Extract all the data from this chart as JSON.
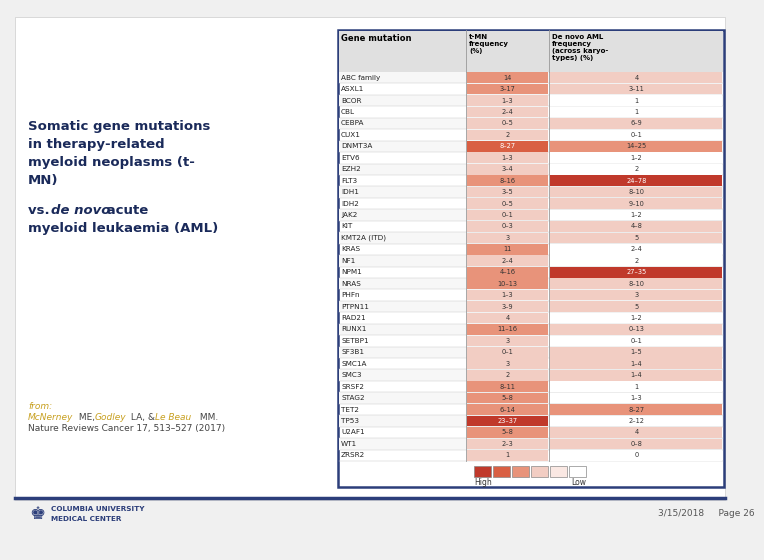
{
  "title_line1": "Somatic gene mutations",
  "title_line2": "in therapy-related",
  "title_line3": "myeloid neoplasms (t-",
  "title_line4": "MN)",
  "vs_line1": "vs. ",
  "vs_italic": "de novo",
  "vs_line2": " acute",
  "vs_line3": "myeloid leukaemia (AML)",
  "col_headers": [
    "Gene mutation",
    "t-MN\nfrequency\n(%)",
    "De novo AML\nfrequency\n(across karyo-\ntypes) (%)"
  ],
  "genes": [
    "ABC family",
    "ASXL1",
    "BCOR",
    "CBL",
    "CEBPA",
    "CUX1",
    "DNMT3A",
    "ETV6",
    "EZH2",
    "FLT3",
    "IDH1",
    "IDH2",
    "JAK2",
    "KIT",
    "KMT2A (ITD)",
    "KRAS",
    "NF1",
    "NPM1",
    "NRAS",
    "PHFn",
    "PTPN11",
    "RAD21",
    "RUNX1",
    "SETBP1",
    "SF3B1",
    "SMC1A",
    "SMC3",
    "SRSF2",
    "STAG2",
    "TET2",
    "TP53",
    "U2AF1",
    "WT1",
    "ZRSR2"
  ],
  "tMN_values": [
    "14",
    "3–17",
    "1–3",
    "2–4",
    "0–5",
    "2",
    "8–27",
    "1–3",
    "3–4",
    "8–16",
    "3–5",
    "0–5",
    "0–1",
    "0–3",
    "3",
    "11",
    "2–4",
    "4–16",
    "10–13",
    "1–3",
    "3–9",
    "4",
    "11–16",
    "3",
    "0–1",
    "3",
    "2",
    "8–11",
    "5–8",
    "6–14",
    "23–37",
    "5–8",
    "2–3",
    "1"
  ],
  "AML_values": [
    "4",
    "3–11",
    "1",
    "1",
    "6–9",
    "0–1",
    "14–25",
    "1–2",
    "2",
    "24–78",
    "8–10",
    "9–10",
    "1–2",
    "4–8",
    "5",
    "2–4",
    "2",
    "27–35",
    "8–10",
    "3",
    "5",
    "1–2",
    "0–13",
    "0–1",
    "1–5",
    "1–4",
    "1–4",
    "1",
    "1–3",
    "8–27",
    "2–12",
    "4",
    "0–8",
    "0"
  ],
  "tMN_colors": [
    "#e8937a",
    "#e8937a",
    "#f2cdc3",
    "#f2cdc3",
    "#f2cdc3",
    "#f2cdc3",
    "#d95f43",
    "#f2cdc3",
    "#f2cdc3",
    "#e8937a",
    "#f2cdc3",
    "#f2cdc3",
    "#f2cdc3",
    "#f2cdc3",
    "#f2cdc3",
    "#e8937a",
    "#f2cdc3",
    "#e8937a",
    "#e8937a",
    "#f2cdc3",
    "#f2cdc3",
    "#f2cdc3",
    "#e8937a",
    "#f2cdc3",
    "#f2cdc3",
    "#f2cdc3",
    "#f2cdc3",
    "#e8937a",
    "#e8937a",
    "#e8937a",
    "#c0392b",
    "#e8937a",
    "#f2cdc3",
    "#f2cdc3"
  ],
  "AML_colors": [
    "#f2cdc3",
    "#f2cdc3",
    "#ffffff",
    "#ffffff",
    "#f2cdc3",
    "#ffffff",
    "#e8937a",
    "#ffffff",
    "#ffffff",
    "#c0392b",
    "#f2cdc3",
    "#f2cdc3",
    "#ffffff",
    "#f2cdc3",
    "#f2cdc3",
    "#ffffff",
    "#ffffff",
    "#c0392b",
    "#f2cdc3",
    "#f2cdc3",
    "#f2cdc3",
    "#ffffff",
    "#f2cdc3",
    "#ffffff",
    "#f2cdc3",
    "#f2cdc3",
    "#f2cdc3",
    "#ffffff",
    "#ffffff",
    "#e8937a",
    "#ffffff",
    "#f2cdc3",
    "#f2cdc3",
    "#ffffff"
  ],
  "left_text_color": "#1a2a5a",
  "gold_color": "#c8a020",
  "table_border_color": "#2c3e7a",
  "footer_line_color": "#2c3e7a",
  "footer_text": "3/15/2018     Page 26",
  "legend_colors": [
    "#c0392b",
    "#d95f43",
    "#e8937a",
    "#f2cdc3",
    "#fae8e3",
    "#ffffff"
  ],
  "dark_text_thresh": [
    "#c0392b",
    "#d95f43"
  ]
}
